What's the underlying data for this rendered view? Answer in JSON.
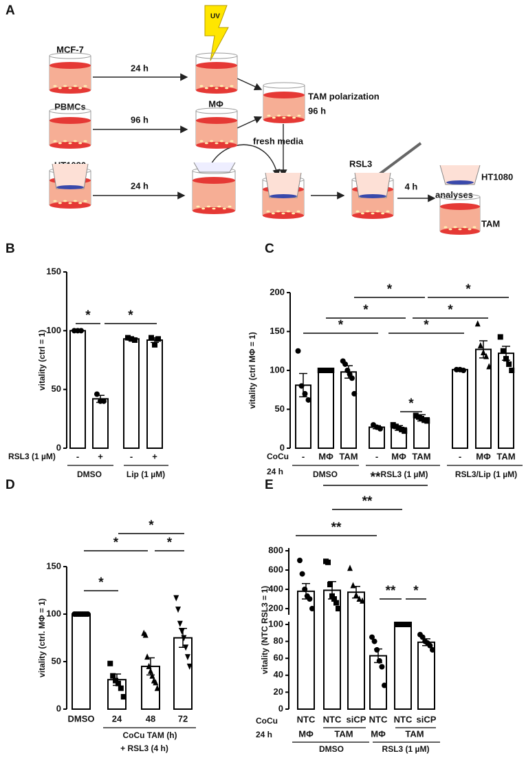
{
  "panel_a": {
    "label": "A",
    "mcf7": "MCF-7",
    "pbmcs": "PBMCs",
    "ht1080": "HT1080",
    "step1_time": "24 h",
    "step2_time": "96 h",
    "step3_time": "24 h",
    "uv": "UV",
    "macrophage": "MΦ",
    "tam_polarization": "TAM polarization",
    "polarization_time": "96 h",
    "fresh_media": "fresh media",
    "rsl3": "RSL3",
    "treatment_time": "4 h",
    "result_ht1080": "HT1080",
    "analyses": "analyses",
    "result_tam": "TAM"
  },
  "chart_data": [
    {
      "type": "bar",
      "panel": "B",
      "y_label": "vitality (ctrl = 1)",
      "ylim": [
        0,
        150
      ],
      "yticks": [
        0,
        50,
        100,
        150
      ],
      "categories": [
        "-",
        "+",
        "-",
        "+"
      ],
      "values": [
        100,
        42,
        93,
        92
      ],
      "errors": [
        0,
        3,
        1,
        2
      ],
      "points": [
        [
          100,
          100,
          100
        ],
        [
          46,
          40,
          40
        ],
        [
          94,
          93,
          92
        ],
        [
          94,
          88,
          93
        ]
      ],
      "markers": [
        "circle",
        "circle",
        "square",
        "square"
      ],
      "color": "#000000",
      "bar_fill": "#ffffff",
      "row_label": "RSL3 (1 µM)",
      "groups": [
        "DMSO",
        "Lip (1 µM)"
      ],
      "annotations": [
        "*",
        "*"
      ]
    },
    {
      "type": "bar",
      "panel": "C",
      "y_label": "vitality (ctrl MΦ = 1)",
      "ylim": [
        0,
        200
      ],
      "yticks": [
        0,
        50,
        100,
        150,
        200
      ],
      "categories": [
        "-",
        "MΦ",
        "TAM",
        "-",
        "MΦ",
        "TAM",
        "-",
        "MΦ",
        "TAM"
      ],
      "values": [
        81,
        100,
        98,
        27,
        26,
        39,
        101,
        127,
        122
      ],
      "errors": [
        15,
        0,
        8,
        2,
        3,
        4,
        1,
        11,
        9
      ],
      "points": [
        [
          125,
          80,
          70,
          62
        ],
        [
          100,
          100,
          100,
          100,
          100,
          100
        ],
        [
          112,
          108,
          100,
          95,
          90,
          70
        ],
        [
          30,
          27,
          25
        ],
        [
          30,
          28,
          26,
          24,
          22
        ],
        [
          42,
          40,
          38,
          36,
          35
        ],
        [
          101,
          101,
          100
        ],
        [
          160,
          132,
          123,
          118,
          105
        ],
        [
          143,
          125,
          115,
          108,
          100
        ]
      ],
      "markers": [
        "circle",
        "square",
        "circle",
        "circle",
        "square",
        "square",
        "circle",
        "triangle",
        "square"
      ],
      "color": "#000000",
      "bar_fill": "#ffffff",
      "row_label": [
        "CoCu",
        "24 h"
      ],
      "groups": [
        "DMSO",
        "RSL3 (1 µM)",
        "RSL3/Lip (1 µM)"
      ],
      "annotations": [
        "*",
        "*",
        "*",
        "*",
        "*",
        "*",
        "*"
      ]
    },
    {
      "type": "bar",
      "panel": "D",
      "y_label": "vitality (ctrl. MΦ = 1)",
      "ylim": [
        0,
        150
      ],
      "yticks": [
        0,
        50,
        100,
        150
      ],
      "categories": [
        "DMSO",
        "24",
        "48",
        "72"
      ],
      "values": [
        100,
        31,
        45,
        75
      ],
      "errors": [
        0,
        6,
        9,
        10
      ],
      "points": [
        [
          100,
          100,
          100,
          100,
          100,
          100,
          100,
          100
        ],
        [
          48,
          35,
          30,
          27,
          22,
          13
        ],
        [
          80,
          78,
          55,
          45,
          40,
          35,
          30,
          28,
          22
        ],
        [
          117,
          105,
          90,
          82,
          75,
          65,
          55,
          45
        ]
      ],
      "markers": [
        "circle",
        "square",
        "triangle",
        "triangle-down"
      ],
      "color": "#000000",
      "bar_fill": "#ffffff",
      "group_label": [
        "CoCu TAM (h)",
        "+ RSL3 (4 h)"
      ],
      "annotations": [
        "*",
        "*",
        "*",
        "*"
      ]
    },
    {
      "type": "bar",
      "panel": "E",
      "y_label": "vitality (NTC RSL3 = 1)",
      "ylim": [
        0,
        100
      ],
      "yticks": [
        0,
        20,
        40,
        60,
        80,
        100
      ],
      "ylim_top": [
        150,
        800
      ],
      "yticks_top": [
        200,
        400,
        600,
        800
      ],
      "axis_break": true,
      "categories": [
        "NTC",
        "NTC",
        "siCP",
        "NTC",
        "NTC",
        "siCP"
      ],
      "subcategories": [
        "MΦ",
        "TAM",
        "MΦ",
        "TAM"
      ],
      "values": [
        380,
        390,
        370,
        63,
        100,
        79
      ],
      "errors": [
        80,
        90,
        60,
        8,
        0,
        4
      ],
      "points": [
        [
          700,
          560,
          400,
          330,
          300,
          200
        ],
        [
          690,
          680,
          450,
          330,
          300,
          260,
          200
        ],
        [
          620,
          440,
          340,
          300,
          280
        ],
        [
          85,
          80,
          70,
          57,
          50,
          28
        ],
        [
          100,
          100,
          100,
          100,
          100,
          100,
          100
        ],
        [
          88,
          85,
          80,
          78,
          75,
          70
        ]
      ],
      "markers": [
        "circle",
        "square",
        "triangle",
        "circle",
        "square",
        "circle"
      ],
      "color": "#000000",
      "bar_fill": "#ffffff",
      "row_label": [
        "CoCu",
        "24 h"
      ],
      "groups": [
        "DMSO",
        "RSL3 (1 µM)"
      ],
      "annotations": [
        "**",
        "**",
        "**",
        "**",
        "*"
      ]
    }
  ]
}
